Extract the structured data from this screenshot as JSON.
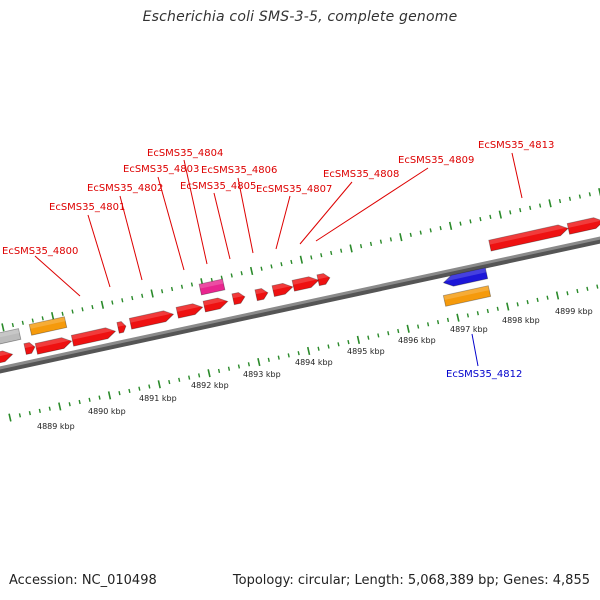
{
  "header": {
    "title": "Escherichia coli SMS-3-5, complete genome"
  },
  "footer": {
    "accession": "Accession: NC_010498",
    "summary": "Topology: circular; Length: 5,068,389 bp; Genes: 4,855"
  },
  "colors": {
    "backbone": "#8a8a8a",
    "tick": "#2a8a2a",
    "gene_red": "#ee1111",
    "gene_orange": "#f59a0c",
    "gene_pink": "#e8258f",
    "gene_blue": "#1d17d8",
    "gene_grey": "#bbbbbb",
    "label_red": "#dd0000",
    "label_blue": "#0000cc"
  },
  "axis": {
    "unit": "kbp",
    "ticks": [
      "4889 kbp",
      "4890 kbp",
      "4891 kbp",
      "4892 kbp",
      "4893 kbp",
      "4894 kbp",
      "4895 kbp",
      "4896 kbp",
      "4897 kbp",
      "4898 kbp",
      "4899 kbp"
    ]
  },
  "gene_labels": [
    "EcSMS35_4800",
    "EcSMS35_4801",
    "EcSMS35_4802",
    "EcSMS35_4803",
    "EcSMS35_4804",
    "EcSMS35_4805",
    "EcSMS35_4806",
    "EcSMS35_4807",
    "EcSMS35_4808",
    "EcSMS35_4809",
    "EcSMS35_4813",
    "EcSMS35_4812"
  ]
}
